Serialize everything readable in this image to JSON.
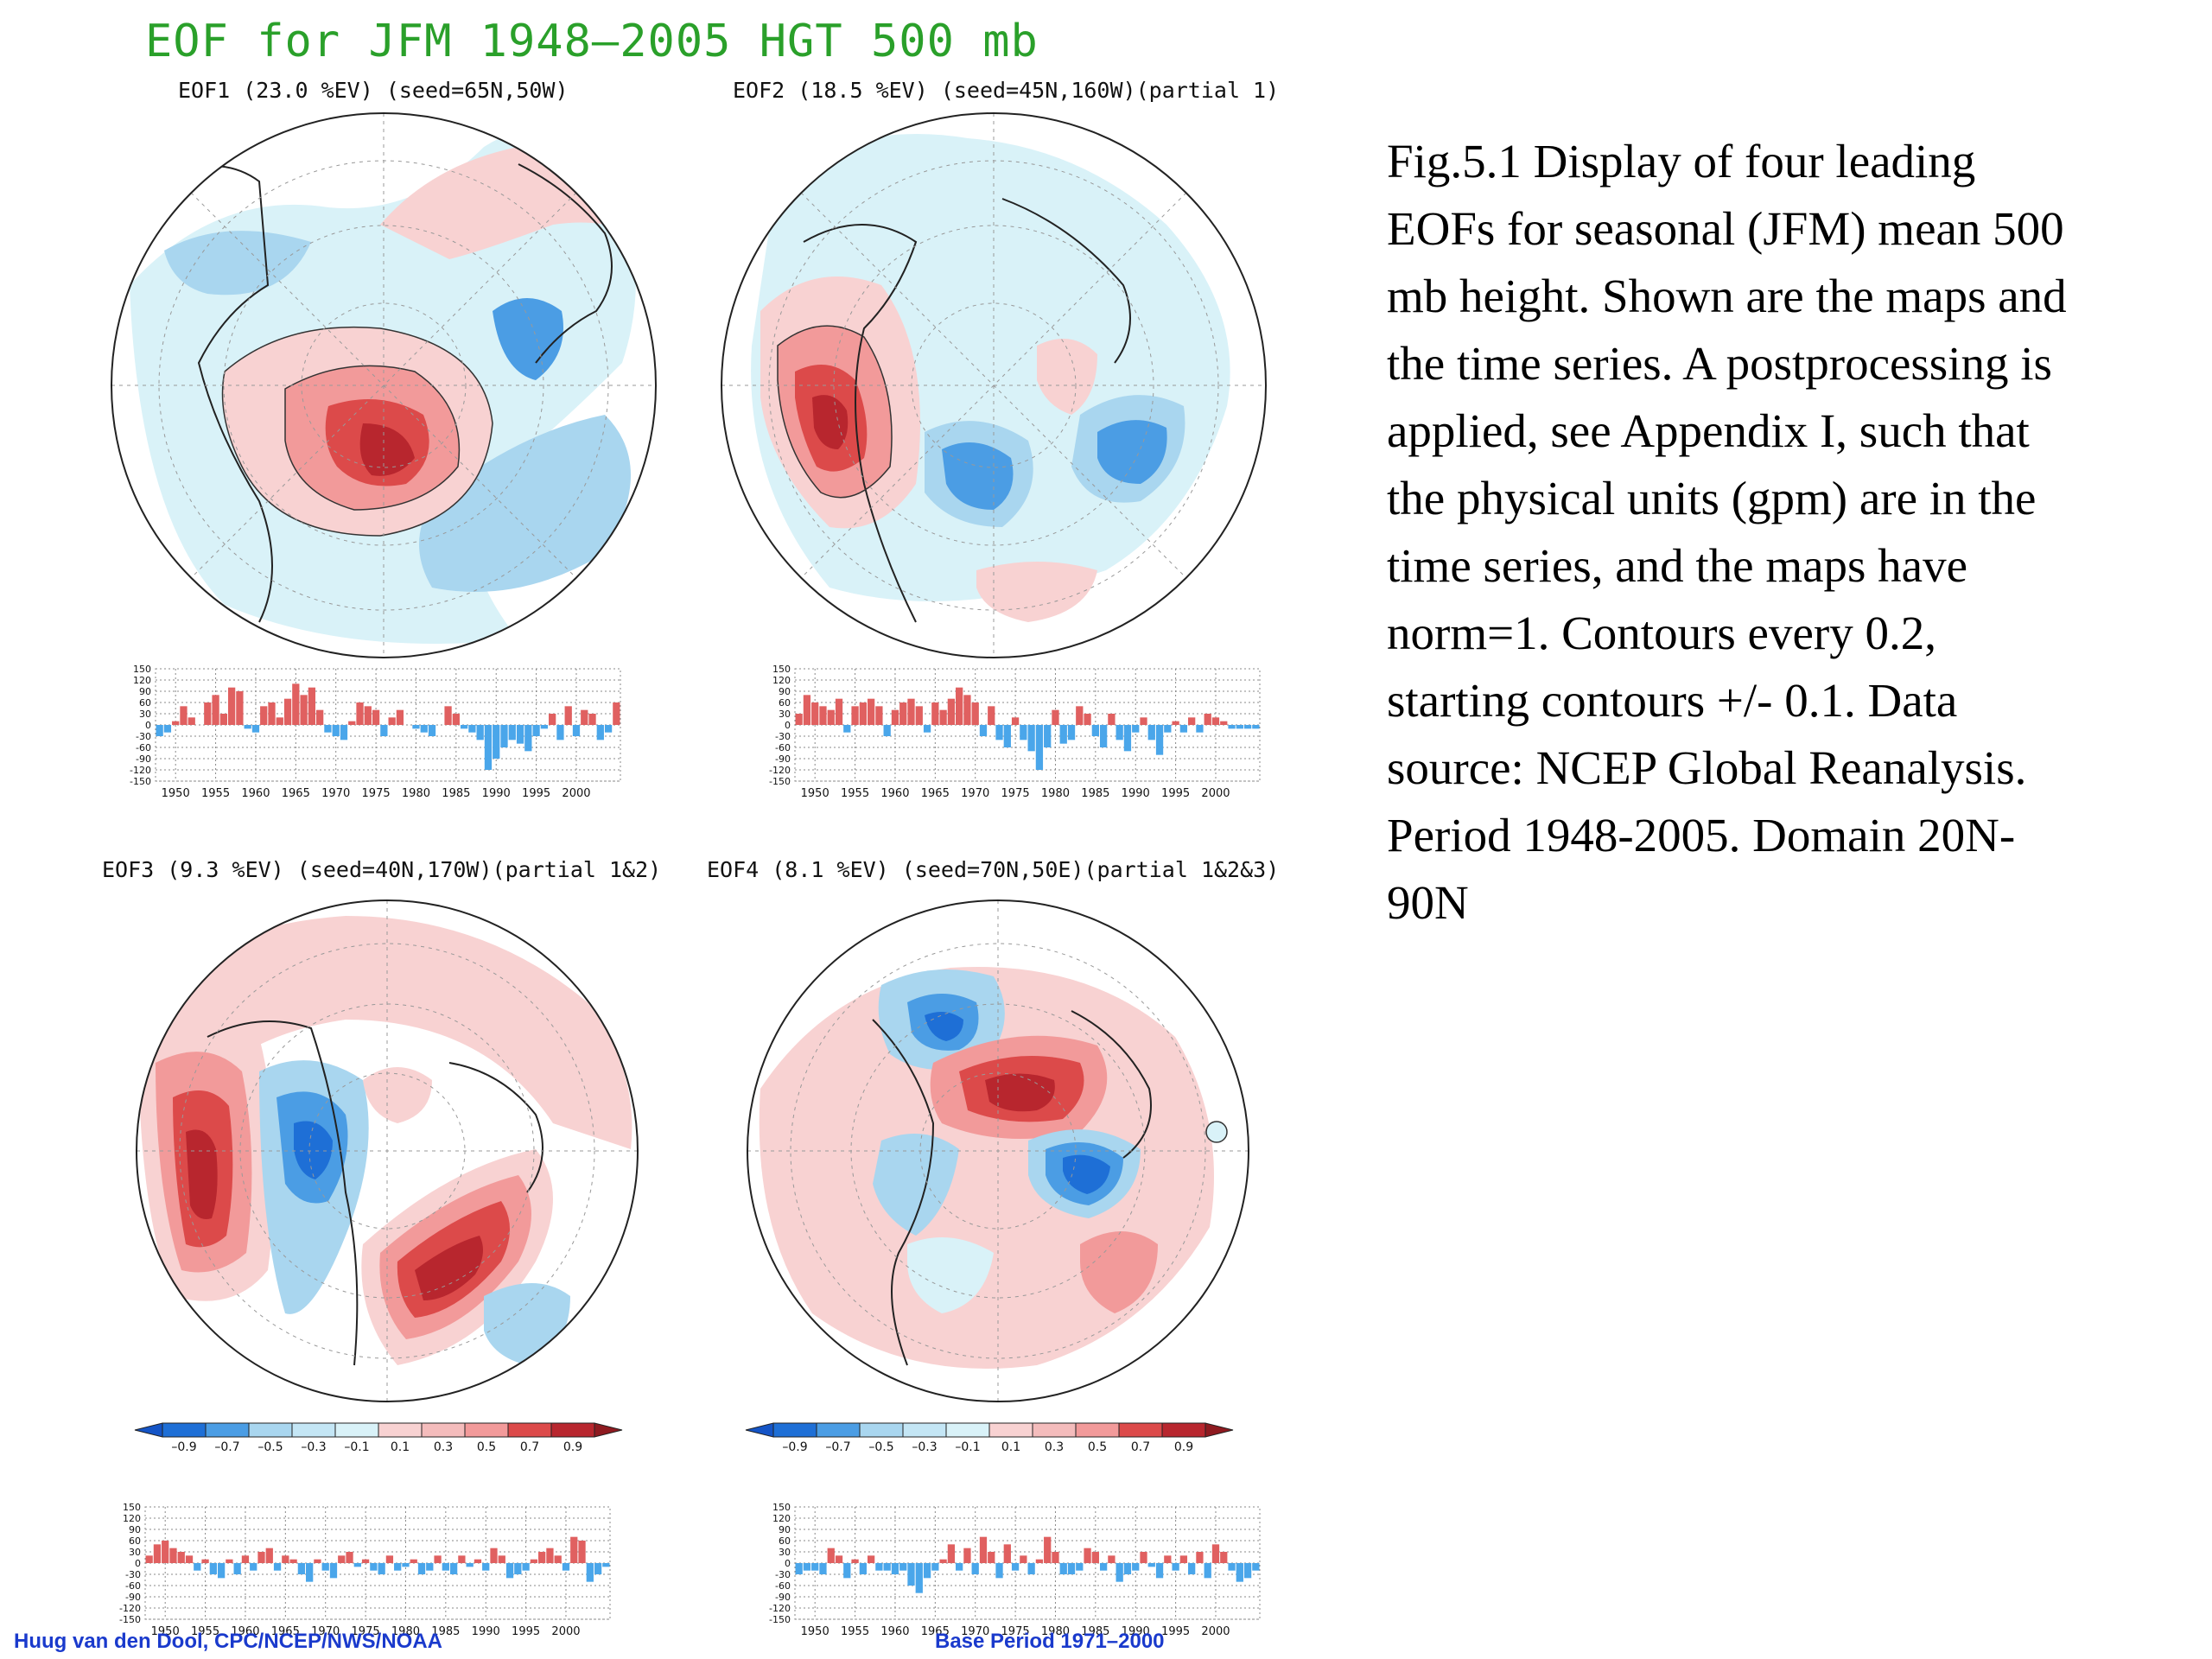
{
  "figure": {
    "title": "EOF for JFM 1948–2005 HGT 500 mb",
    "caption": "Fig.5.1 Display of  four leading EOFs for seasonal (JFM) mean 500 mb height. Shown are the maps and the time series. A postprocessing is applied, see Appendix I, such that the physical units (gpm) are in the time series, and the maps have norm=1. Contours every 0.2, starting contours +/- 0.1. Data source: NCEP Global Reanalysis. Period 1948-2005. Domain 20N-90N",
    "footer_left": "Huug van den Dool, CPC/NCEP/NWS/NOAA",
    "footer_right": "Base Period 1971–2000"
  },
  "colors": {
    "title": "#2aa02a",
    "positive_strong": "#b8262e",
    "positive_mid": "#dc4a4a",
    "positive_light": "#f29a9a",
    "positive_pale": "#f8d2d2",
    "negative_pale": "#d9f2f8",
    "negative_light": "#a9d6ef",
    "negative_mid": "#4b9de4",
    "negative_strong": "#1e6fd6",
    "bar_positive": "#e06060",
    "bar_negative": "#4aa6ea",
    "footer": "#1a3acc"
  },
  "colorbar": {
    "labels": [
      "–0.9",
      "–0.7",
      "–0.5",
      "–0.3",
      "–0.1",
      "0.1",
      "0.3",
      "0.5",
      "0.7",
      "0.9"
    ]
  },
  "panels": [
    {
      "label": "EOF1 (23.0 %EV)  (seed=65N,50W)"
    },
    {
      "label": "EOF2 (18.5 %EV) (seed=45N,160W)(partial 1)"
    },
    {
      "label": "EOF3 (9.3 %EV)  (seed=40N,170W)(partial 1&2)"
    },
    {
      "label": "EOF4 (8.1 %EV)  (seed=70N,50E)(partial 1&2&3)"
    }
  ],
  "chart_data": [
    {
      "type": "bar",
      "title": "EOF1 (23.0 %EV)  (seed=65N,50W)",
      "x": [
        1948,
        1949,
        1950,
        1951,
        1952,
        1953,
        1954,
        1955,
        1956,
        1957,
        1958,
        1959,
        1960,
        1961,
        1962,
        1963,
        1964,
        1965,
        1966,
        1967,
        1968,
        1969,
        1970,
        1971,
        1972,
        1973,
        1974,
        1975,
        1976,
        1977,
        1978,
        1979,
        1980,
        1981,
        1982,
        1983,
        1984,
        1985,
        1986,
        1987,
        1988,
        1989,
        1990,
        1991,
        1992,
        1993,
        1994,
        1995,
        1996,
        1997,
        1998,
        1999,
        2000,
        2001,
        2002,
        2003,
        2004,
        2005
      ],
      "values": [
        -30,
        -20,
        10,
        50,
        20,
        0,
        60,
        80,
        30,
        100,
        90,
        -10,
        -20,
        50,
        60,
        20,
        70,
        110,
        80,
        100,
        40,
        -20,
        -30,
        -40,
        10,
        60,
        50,
        40,
        -30,
        20,
        40,
        0,
        -10,
        -20,
        -30,
        0,
        50,
        30,
        -10,
        -20,
        -40,
        -120,
        -90,
        -60,
        -40,
        -50,
        -70,
        -30,
        -10,
        30,
        -40,
        50,
        -30,
        40,
        30,
        -40,
        -20,
        60
      ],
      "xlim": [
        1948,
        2005
      ],
      "ylim": [
        -150,
        150
      ],
      "yticks": [
        150,
        120,
        90,
        60,
        30,
        0,
        -30,
        -60,
        -90,
        -120,
        -150
      ],
      "xticks": [
        1950,
        1955,
        1960,
        1965,
        1970,
        1975,
        1980,
        1985,
        1990,
        1995,
        2000
      ]
    },
    {
      "type": "bar",
      "title": "EOF2 (18.5 %EV) (seed=45N,160W)(partial 1)",
      "x": [
        1948,
        1949,
        1950,
        1951,
        1952,
        1953,
        1954,
        1955,
        1956,
        1957,
        1958,
        1959,
        1960,
        1961,
        1962,
        1963,
        1964,
        1965,
        1966,
        1967,
        1968,
        1969,
        1970,
        1971,
        1972,
        1973,
        1974,
        1975,
        1976,
        1977,
        1978,
        1979,
        1980,
        1981,
        1982,
        1983,
        1984,
        1985,
        1986,
        1987,
        1988,
        1989,
        1990,
        1991,
        1992,
        1993,
        1994,
        1995,
        1996,
        1997,
        1998,
        1999,
        2000,
        2001,
        2002,
        2003,
        2004,
        2005
      ],
      "values": [
        30,
        80,
        60,
        50,
        40,
        70,
        -20,
        50,
        60,
        70,
        50,
        -30,
        40,
        60,
        70,
        50,
        -20,
        60,
        40,
        70,
        100,
        80,
        60,
        -30,
        50,
        -40,
        -60,
        20,
        -40,
        -70,
        -120,
        -60,
        40,
        -50,
        -40,
        50,
        30,
        -30,
        -60,
        30,
        -40,
        -70,
        -20,
        20,
        -40,
        -80,
        -20,
        10,
        -20,
        20,
        -20,
        30,
        20,
        10,
        -10,
        -10,
        -10,
        -10
      ],
      "xlim": [
        1948,
        2005
      ],
      "ylim": [
        -150,
        150
      ],
      "yticks": [
        150,
        120,
        90,
        60,
        30,
        0,
        -30,
        -60,
        -90,
        -120,
        -150
      ],
      "xticks": [
        1950,
        1955,
        1960,
        1965,
        1970,
        1975,
        1980,
        1985,
        1990,
        1995,
        2000
      ]
    },
    {
      "type": "bar",
      "title": "EOF3 (9.3 %EV)  (seed=40N,170W)(partial 1&2)",
      "x": [
        1948,
        1949,
        1950,
        1951,
        1952,
        1953,
        1954,
        1955,
        1956,
        1957,
        1958,
        1959,
        1960,
        1961,
        1962,
        1963,
        1964,
        1965,
        1966,
        1967,
        1968,
        1969,
        1970,
        1971,
        1972,
        1973,
        1974,
        1975,
        1976,
        1977,
        1978,
        1979,
        1980,
        1981,
        1982,
        1983,
        1984,
        1985,
        1986,
        1987,
        1988,
        1989,
        1990,
        1991,
        1992,
        1993,
        1994,
        1995,
        1996,
        1997,
        1998,
        1999,
        2000,
        2001,
        2002,
        2003,
        2004,
        2005
      ],
      "values": [
        20,
        50,
        60,
        40,
        30,
        20,
        -20,
        10,
        -30,
        -40,
        10,
        -30,
        20,
        -20,
        30,
        40,
        -20,
        20,
        10,
        -30,
        -50,
        10,
        -20,
        -40,
        20,
        30,
        -10,
        10,
        -20,
        -30,
        20,
        -20,
        -10,
        10,
        -30,
        -20,
        20,
        -20,
        -30,
        20,
        -10,
        10,
        -20,
        40,
        20,
        -40,
        -30,
        -20,
        10,
        30,
        40,
        20,
        -20,
        70,
        60,
        -50,
        -30,
        -10
      ],
      "xlim": [
        1948,
        2005
      ],
      "ylim": [
        -150,
        150
      ],
      "yticks": [
        150,
        120,
        90,
        60,
        30,
        0,
        -30,
        -60,
        -90,
        -120,
        -150
      ],
      "xticks": [
        1950,
        1955,
        1960,
        1965,
        1970,
        1975,
        1980,
        1985,
        1990,
        1995,
        2000
      ]
    },
    {
      "type": "bar",
      "title": "EOF4 (8.1 %EV)  (seed=70N,50E)(partial 1&2&3)",
      "x": [
        1948,
        1949,
        1950,
        1951,
        1952,
        1953,
        1954,
        1955,
        1956,
        1957,
        1958,
        1959,
        1960,
        1961,
        1962,
        1963,
        1964,
        1965,
        1966,
        1967,
        1968,
        1969,
        1970,
        1971,
        1972,
        1973,
        1974,
        1975,
        1976,
        1977,
        1978,
        1979,
        1980,
        1981,
        1982,
        1983,
        1984,
        1985,
        1986,
        1987,
        1988,
        1989,
        1990,
        1991,
        1992,
        1993,
        1994,
        1995,
        1996,
        1997,
        1998,
        1999,
        2000,
        2001,
        2002,
        2003,
        2004,
        2005
      ],
      "values": [
        -30,
        -20,
        -20,
        -30,
        40,
        20,
        -40,
        10,
        -30,
        20,
        -20,
        -20,
        -30,
        -20,
        -60,
        -80,
        -40,
        -20,
        10,
        50,
        -20,
        40,
        -30,
        70,
        30,
        -40,
        50,
        -20,
        20,
        -30,
        10,
        70,
        30,
        -30,
        -30,
        -20,
        40,
        30,
        -20,
        20,
        -50,
        -30,
        -20,
        30,
        -10,
        -40,
        20,
        -20,
        20,
        -30,
        30,
        -40,
        50,
        30,
        -20,
        -50,
        -40,
        -20
      ],
      "xlim": [
        1948,
        2005
      ],
      "ylim": [
        -150,
        150
      ],
      "yticks": [
        150,
        120,
        90,
        60,
        30,
        0,
        -30,
        -60,
        -90,
        -120,
        -150
      ],
      "xticks": [
        1950,
        1955,
        1960,
        1965,
        1970,
        1975,
        1980,
        1985,
        1990,
        1995,
        2000
      ]
    }
  ]
}
